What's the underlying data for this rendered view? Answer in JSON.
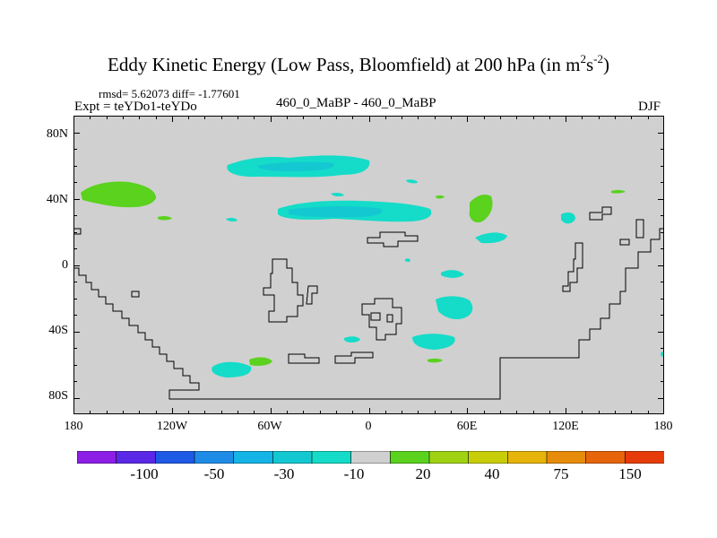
{
  "header": {
    "title_main": "Eddy Kinetic Energy (Low Pass, Bloomfield) at 200 hPa (in m",
    "title_sup1": "2",
    "title_mid": "s",
    "title_sup2": "-2",
    "title_end": ")",
    "stats": "rmsd= 5.62073 diff= -1.77601",
    "expt": "Expt = teYDo1-teYDo",
    "center_label": "460_0_MaBP - 460_0_MaBP",
    "season": "DJF"
  },
  "axes": {
    "lat_labels": [
      "80N",
      "40N",
      "0",
      "40S",
      "80S"
    ],
    "lon_labels": [
      "180",
      "120W",
      "60W",
      "0",
      "60E",
      "120E",
      "180"
    ]
  },
  "colorbar": {
    "colors": [
      "#8c1ee6",
      "#5a28e6",
      "#1e5ae6",
      "#1e8ce6",
      "#14b4e6",
      "#14c8d2",
      "#14dcc8",
      "#d0d0d0",
      "#5ad21e",
      "#a0d214",
      "#c8cd0a",
      "#e6b40a",
      "#e68c0a",
      "#e6640a",
      "#e63c0a"
    ],
    "labels": [
      "-100",
      "-50",
      "-30",
      "-10",
      "20",
      "40",
      "75",
      "150"
    ]
  },
  "map_colors": {
    "land": "#d0d0d0",
    "negative_fill": "#14dcc8",
    "negative_core": "#14c8d2",
    "positive_fill": "#5ad21e"
  }
}
